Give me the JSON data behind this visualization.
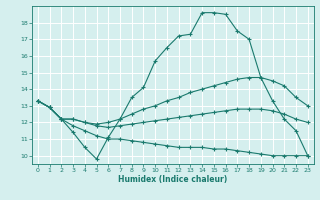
{
  "title": "",
  "xlabel": "Humidex (Indice chaleur)",
  "ylabel": "",
  "bg_color": "#d5efee",
  "line_color": "#1a7a6e",
  "grid_color": "#ffffff",
  "xlim": [
    -0.5,
    23.5
  ],
  "ylim": [
    9.5,
    19.0
  ],
  "yticks": [
    10,
    11,
    12,
    13,
    14,
    15,
    16,
    17,
    18
  ],
  "xticks": [
    0,
    1,
    2,
    3,
    4,
    5,
    6,
    7,
    8,
    9,
    10,
    11,
    12,
    13,
    14,
    15,
    16,
    17,
    18,
    19,
    20,
    21,
    22,
    23
  ],
  "line1": {
    "x": [
      0,
      1,
      2,
      3,
      4,
      5,
      6,
      7,
      8,
      9,
      10,
      11,
      12,
      13,
      14,
      15,
      16,
      17,
      18,
      19,
      20,
      21,
      22,
      23
    ],
    "y": [
      13.3,
      12.9,
      12.2,
      11.4,
      10.5,
      9.8,
      11.1,
      12.2,
      13.5,
      14.1,
      15.7,
      16.5,
      17.2,
      17.3,
      18.6,
      18.6,
      18.5,
      17.5,
      17.0,
      14.7,
      13.3,
      12.2,
      11.5,
      10.0
    ]
  },
  "line2": {
    "x": [
      0,
      1,
      2,
      3,
      4,
      5,
      6,
      7,
      8,
      9,
      10,
      11,
      12,
      13,
      14,
      15,
      16,
      17,
      18,
      19,
      20,
      21,
      22,
      23
    ],
    "y": [
      13.3,
      12.9,
      12.2,
      12.2,
      12.0,
      11.9,
      12.0,
      12.2,
      12.5,
      12.8,
      13.0,
      13.3,
      13.5,
      13.8,
      14.0,
      14.2,
      14.4,
      14.6,
      14.7,
      14.7,
      14.5,
      14.2,
      13.5,
      13.0
    ]
  },
  "line3": {
    "x": [
      0,
      1,
      2,
      3,
      4,
      5,
      6,
      7,
      8,
      9,
      10,
      11,
      12,
      13,
      14,
      15,
      16,
      17,
      18,
      19,
      20,
      21,
      22,
      23
    ],
    "y": [
      13.3,
      12.9,
      12.2,
      12.2,
      12.0,
      11.8,
      11.7,
      11.8,
      11.9,
      12.0,
      12.1,
      12.2,
      12.3,
      12.4,
      12.5,
      12.6,
      12.7,
      12.8,
      12.8,
      12.8,
      12.7,
      12.5,
      12.2,
      12.0
    ]
  },
  "line4": {
    "x": [
      0,
      1,
      2,
      3,
      4,
      5,
      6,
      7,
      8,
      9,
      10,
      11,
      12,
      13,
      14,
      15,
      16,
      17,
      18,
      19,
      20,
      21,
      22,
      23
    ],
    "y": [
      13.3,
      12.9,
      12.2,
      11.8,
      11.5,
      11.2,
      11.0,
      11.0,
      10.9,
      10.8,
      10.7,
      10.6,
      10.5,
      10.5,
      10.5,
      10.4,
      10.4,
      10.3,
      10.2,
      10.1,
      10.0,
      10.0,
      10.0,
      10.0
    ]
  }
}
